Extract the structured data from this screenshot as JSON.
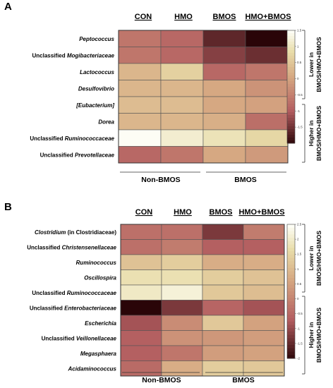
{
  "chart_data": [
    {
      "type": "heatmap",
      "panel": "A",
      "columns": [
        "CON",
        "HMO",
        "BMOS",
        "HMO+BMOS"
      ],
      "rows": [
        {
          "taxon": "Peptococcus",
          "prefix": "",
          "suffix": "",
          "values": [
            -0.6,
            -0.8,
            -1.6,
            -2.0
          ]
        },
        {
          "taxon": "Mogibacteriaceae",
          "prefix": "Unclassified ",
          "suffix": "",
          "values": [
            -0.6,
            -0.8,
            -1.3,
            -1.5
          ]
        },
        {
          "taxon": "Lactococcus",
          "prefix": "",
          "suffix": "",
          "values": [
            0.3,
            0.7,
            -0.8,
            -0.6
          ]
        },
        {
          "taxon": "Desulfovibrio",
          "prefix": "",
          "suffix": "",
          "values": [
            0.3,
            0.3,
            0.1,
            -0.2
          ]
        },
        {
          "taxon": "[Eubacterium]",
          "prefix": "",
          "suffix": "",
          "values": [
            0.4,
            0.4,
            0.1,
            0.0
          ]
        },
        {
          "taxon": "Dorea",
          "prefix": "",
          "suffix": "",
          "values": [
            0.3,
            0.3,
            0.2,
            -0.7
          ]
        },
        {
          "taxon": "Ruminococcaceae",
          "prefix": "Unclassified ",
          "suffix": "",
          "values": [
            1.5,
            1.2,
            1.0,
            0.8
          ]
        },
        {
          "taxon": "Prevotellaceae",
          "prefix": "Unclassified ",
          "suffix": "",
          "values": [
            -0.8,
            -0.6,
            0.1,
            -0.1
          ]
        }
      ],
      "groups": [
        "Non-BMOS",
        "BMOS"
      ],
      "side_labels": [
        "Lower in BMOS/HMO+BMOS",
        "Higher in BMOS/HMO+BMOS"
      ],
      "colorbar_ticks": [
        "1.5",
        "1",
        "0.5",
        "0",
        "-0.5",
        "-1",
        "-1.5"
      ],
      "vmin": -2.0,
      "vmax": 1.5
    },
    {
      "type": "heatmap",
      "panel": "B",
      "columns": [
        "CON",
        "HMO",
        "BMOS",
        "HMO+BMOS"
      ],
      "rows": [
        {
          "taxon": "Clostridium",
          "prefix": "",
          "suffix": " (in Clostridiaceae)",
          "values": [
            -0.3,
            -0.3,
            -1.2,
            -0.1
          ]
        },
        {
          "taxon": "Christensenellaceae",
          "prefix": "Unclassified ",
          "suffix": "",
          "values": [
            -0.3,
            -0.1,
            -0.6,
            -0.6
          ]
        },
        {
          "taxon": "Ruminococcus",
          "prefix": "",
          "suffix": "",
          "values": [
            1.2,
            1.4,
            0.8,
            0.8
          ]
        },
        {
          "taxon": "Oscillospira",
          "prefix": "",
          "suffix": "",
          "values": [
            1.8,
            1.8,
            1.4,
            1.2
          ]
        },
        {
          "taxon": "Ruminococcaceae",
          "prefix": "Unclassified ",
          "suffix": "",
          "values": [
            2.0,
            2.2,
            1.3,
            1.1
          ]
        },
        {
          "taxon": "Enterobacteriaceae",
          "prefix": "Unclassified ",
          "suffix": "",
          "values": [
            -2.0,
            -1.2,
            -0.5,
            -0.8
          ]
        },
        {
          "taxon": "Escherichia",
          "prefix": "",
          "suffix": "",
          "values": [
            -0.8,
            0.2,
            1.3,
            0.6
          ]
        },
        {
          "taxon": "Veillonellaceae",
          "prefix": "Unclassified ",
          "suffix": "",
          "values": [
            -0.6,
            0.3,
            0.4,
            0.5
          ]
        },
        {
          "taxon": "Megasphaera",
          "prefix": "",
          "suffix": "",
          "values": [
            -0.6,
            -0.2,
            0.5,
            0.6
          ]
        },
        {
          "taxon": "Acidaminococcus",
          "prefix": "",
          "suffix": "",
          "values": [
            -0.4,
            0.8,
            1.4,
            1.3
          ]
        }
      ],
      "groups": [
        "Non-BMOS",
        "BMOS"
      ],
      "side_labels": [
        "Lower in BMOS/HMO+BMOS",
        "Higher in BMOS/HMO+BMOS"
      ],
      "colorbar_ticks": [
        "2.5",
        "2",
        "1.5",
        "1",
        "0.5",
        "0",
        "-0.5",
        "-1",
        "-1.5",
        "-2"
      ],
      "vmin": -2.0,
      "vmax": 2.5
    }
  ],
  "colors": {
    "low": "#2a0508",
    "mid_low": "#b35d60",
    "mid": "#d6a882",
    "mid_high": "#e8dca8",
    "high": "#fdfdf5"
  }
}
